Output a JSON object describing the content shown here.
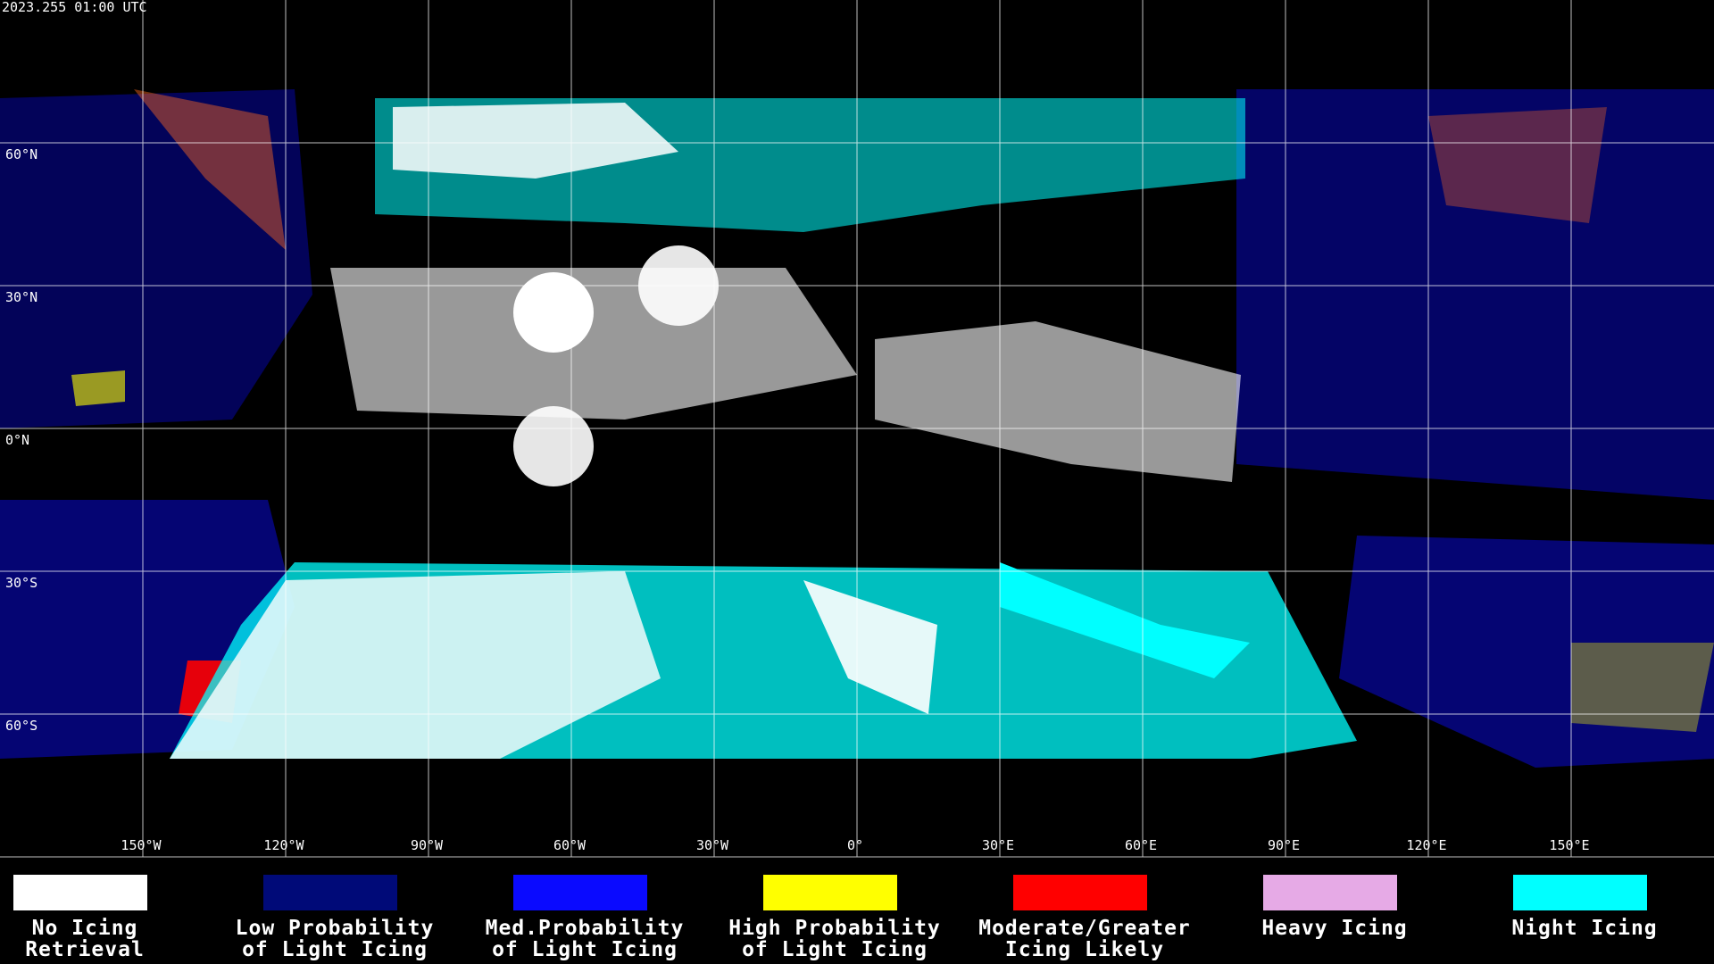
{
  "header": {
    "timestamp": "2023.255 01:00 UTC"
  },
  "map": {
    "lat_labels": [
      "60°N",
      "30°N",
      "0°N",
      "30°S",
      "60°S"
    ],
    "lon_labels": [
      "150°W",
      "120°W",
      "90°W",
      "60°W",
      "30°W",
      "0°",
      "30°E",
      "60°E",
      "90°E",
      "120°E",
      "150°E"
    ]
  },
  "legend": [
    {
      "lines": [
        "No Icing",
        "Retrieval"
      ],
      "color": "#ffffff"
    },
    {
      "lines": [
        "Low Probability",
        "of Light Icing"
      ],
      "color": "#000a78"
    },
    {
      "lines": [
        "Med.Probability",
        "of Light Icing"
      ],
      "color": "#0a0aff"
    },
    {
      "lines": [
        "High Probability",
        "of Light Icing"
      ],
      "color": "#ffff00"
    },
    {
      "lines": [
        "Moderate/Greater",
        "Icing Likely"
      ],
      "color": "#ff0000"
    },
    {
      "lines": [
        "Heavy Icing"
      ],
      "color": "#e6aae6"
    },
    {
      "lines": [
        "Night Icing"
      ],
      "color": "#00ffff"
    }
  ]
}
